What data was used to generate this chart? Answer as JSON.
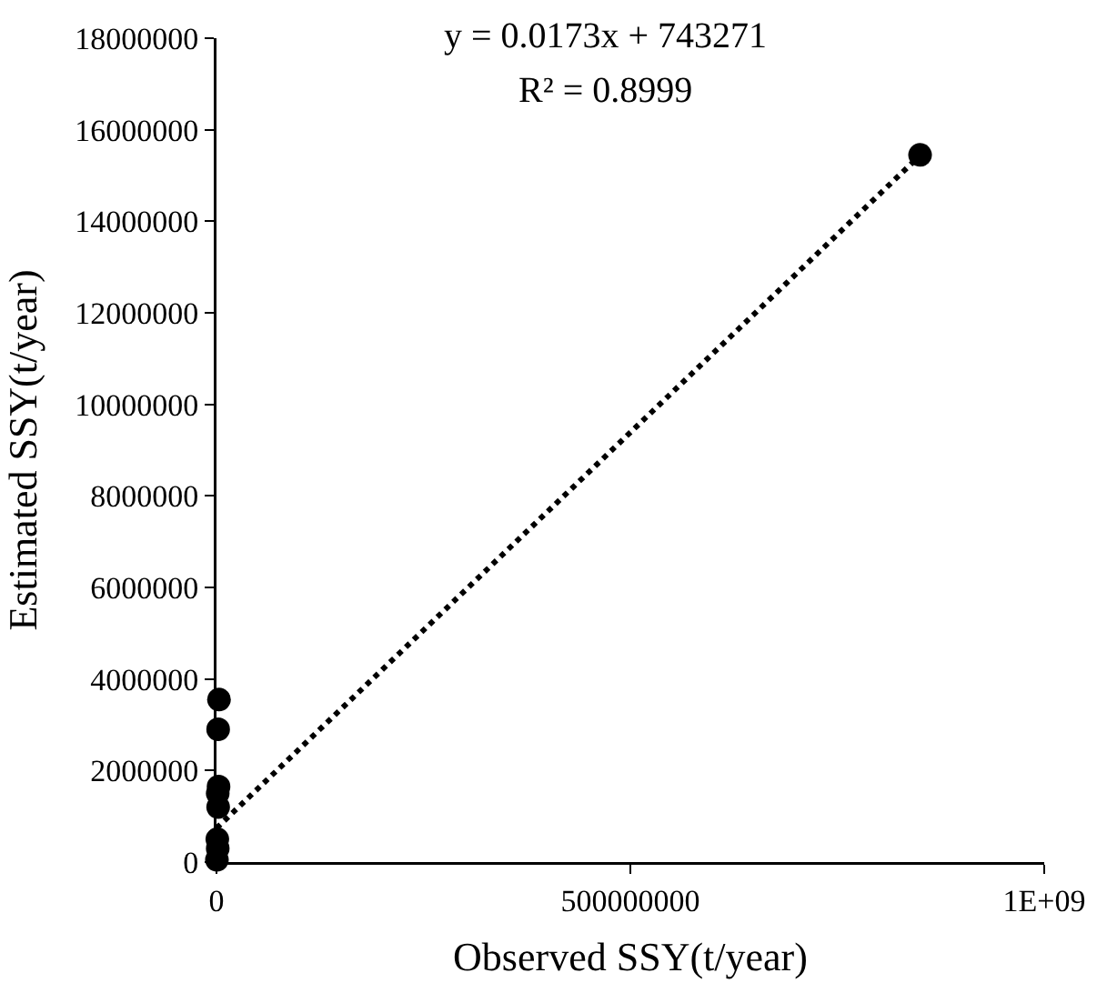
{
  "chart_data": {
    "type": "scatter",
    "xlabel": "Observed SSY(t/year)",
    "ylabel": "Estimated SSY(t/year)",
    "annotations": [
      "y = 0.0173x + 743271",
      "R² = 0.8999"
    ],
    "xlim": [
      0,
      1000000000
    ],
    "xticks": [
      0,
      500000000,
      {
        "value": 1000000000,
        "label": "1E+09"
      }
    ],
    "ylim": [
      0,
      18000000
    ],
    "yticks": [
      0,
      2000000,
      4000000,
      6000000,
      8000000,
      10000000,
      12000000,
      14000000,
      16000000,
      18000000
    ],
    "grid": false,
    "series": [
      {
        "marker": "circle",
        "color": "#000000",
        "x": [
          3000000,
          2000000,
          2500000,
          1500000,
          2000000,
          1000000,
          1500000,
          500000,
          850000000
        ],
        "values": [
          3550000,
          2900000,
          1650000,
          1500000,
          1200000,
          500000,
          300000,
          50000,
          15450000
        ]
      },
      {
        "type": "line",
        "marker": "none",
        "line_style": "dotted",
        "color": "#000000",
        "x": [
          0,
          850000000
        ],
        "values": [
          740000,
          15440000
        ]
      }
    ]
  }
}
